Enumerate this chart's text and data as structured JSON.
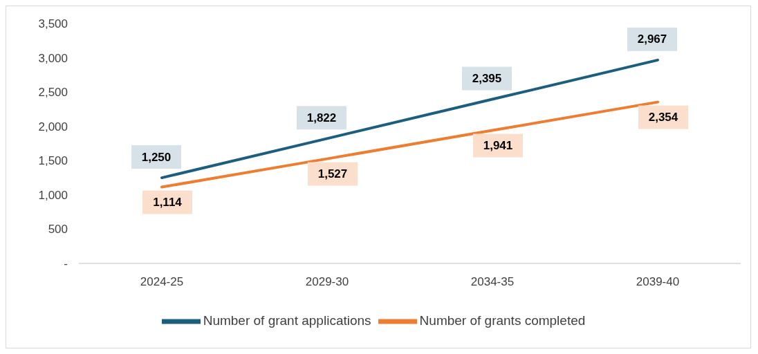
{
  "chart_data": {
    "type": "line",
    "categories": [
      "2024-25",
      "2029-30",
      "2034-35",
      "2039-40"
    ],
    "series": [
      {
        "name": "Number of grant applications",
        "color": "#1b5e7e",
        "values": [
          1250,
          1822,
          2395,
          2967
        ],
        "value_labels": [
          "1,250",
          "1,822",
          "2,395",
          "2,967"
        ]
      },
      {
        "name": "Number of grants completed",
        "color": "#ed7d31",
        "values": [
          1114,
          1527,
          1941,
          2354
        ],
        "value_labels": [
          "1,114",
          "1,527",
          "1,941",
          "2,354"
        ]
      }
    ],
    "ylim": [
      0,
      3500
    ],
    "yticks": [
      {
        "value": 0,
        "label": "-"
      },
      {
        "value": 500,
        "label": "500"
      },
      {
        "value": 1000,
        "label": "1,000"
      },
      {
        "value": 1500,
        "label": "1,500"
      },
      {
        "value": 2000,
        "label": "2,000"
      },
      {
        "value": 2500,
        "label": "2,500"
      },
      {
        "value": 3000,
        "label": "3,000"
      },
      {
        "value": 3500,
        "label": "3,500"
      }
    ],
    "grid": false,
    "legend": "bottom",
    "marker": "none",
    "line_style": "solid"
  }
}
